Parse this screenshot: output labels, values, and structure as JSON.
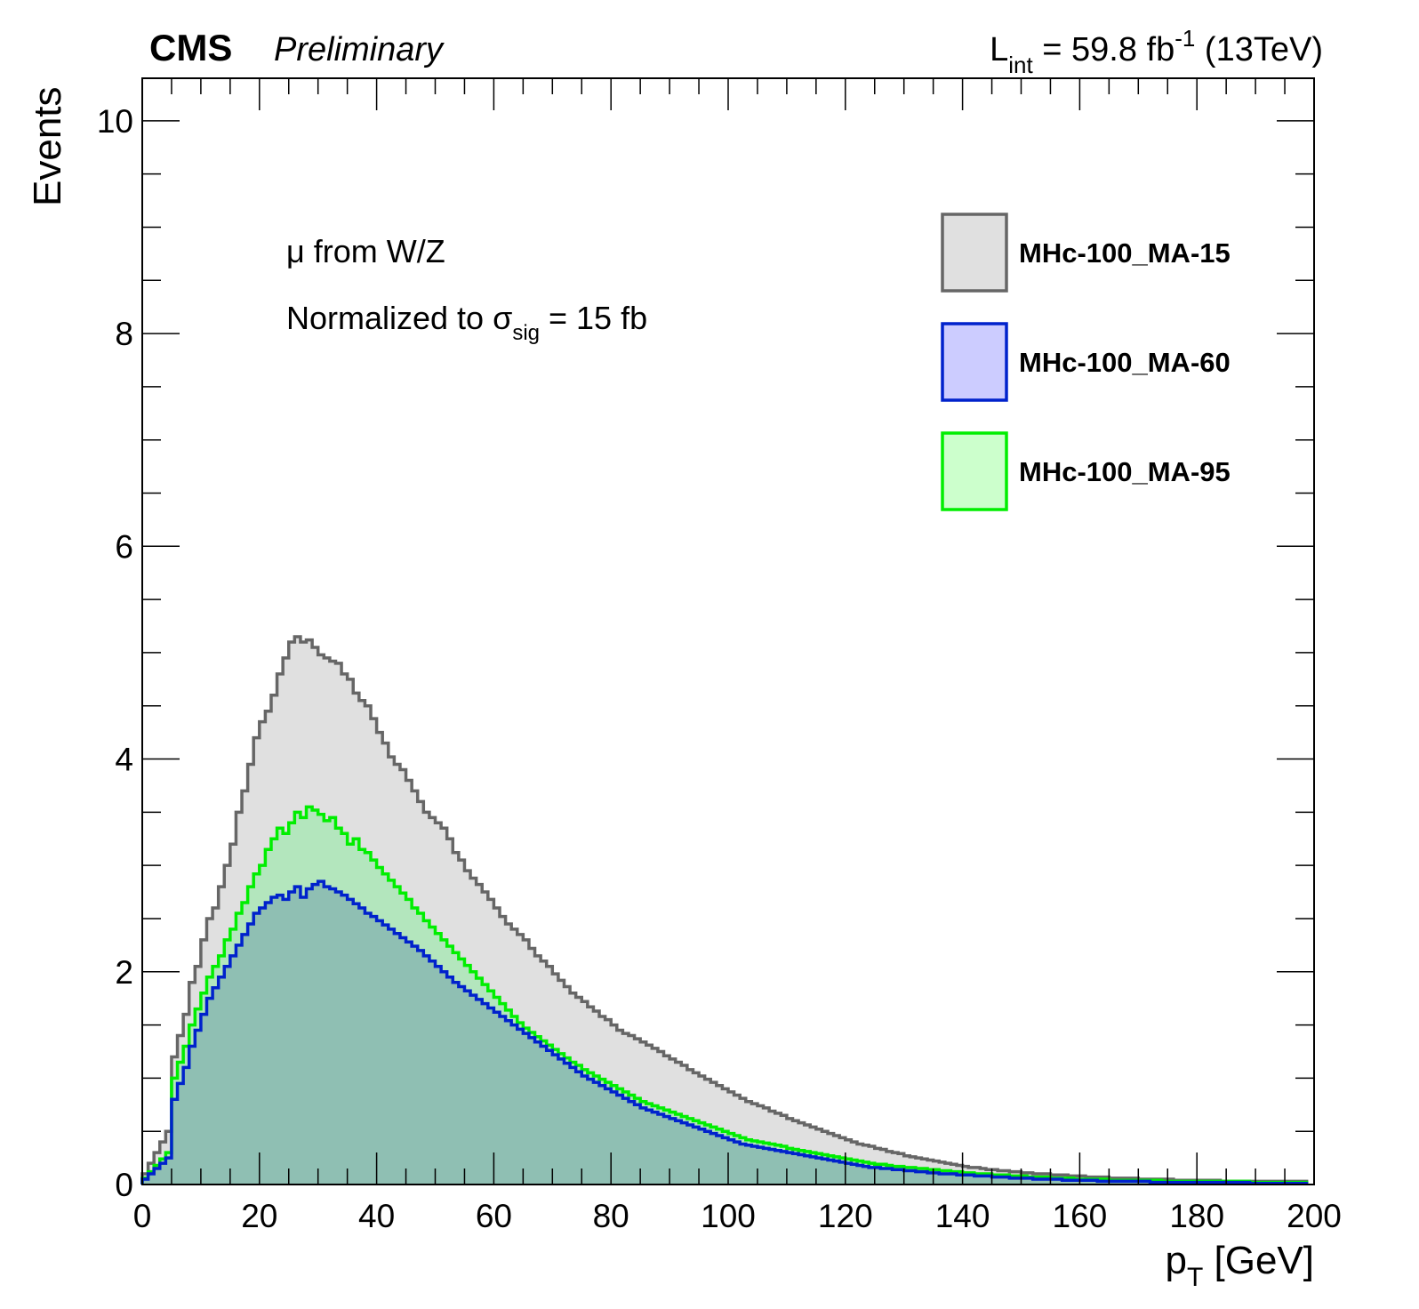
{
  "header": {
    "experiment": "CMS",
    "status": "Preliminary",
    "lumi_prefix": "L",
    "lumi_sub": "int",
    "lumi_value": " = 59.8 fb",
    "lumi_sup": "-1",
    "lumi_energy": " (13TeV)"
  },
  "annotations": {
    "line1": "μ from W/Z",
    "line2_prefix": "Normalized to σ",
    "line2_sub": "sig",
    "line2_suffix": " = 15 fb"
  },
  "axes": {
    "xlabel_main": "p",
    "xlabel_sub": "T",
    "xlabel_unit": " [GeV]",
    "ylabel": "Events"
  },
  "colors": {
    "ma15_line": "#666666",
    "ma15_fill": "#e0e0e0",
    "ma60_line": "#0022cc",
    "ma60_fill": "#ccccff",
    "ma95_line": "#00ee00",
    "ma95_fill": "#ccffcc",
    "overlap_fill": "#8fbfb3",
    "green_band_fill": "#b3e6bd"
  },
  "chart_data": {
    "type": "histogram",
    "xlim": [
      0,
      200
    ],
    "ylim": [
      0,
      10.4
    ],
    "x_ticks": [
      0,
      20,
      40,
      60,
      80,
      100,
      120,
      140,
      160,
      180,
      200
    ],
    "y_ticks": [
      0,
      2,
      4,
      6,
      8,
      10
    ],
    "grid": false,
    "legend_position": "top-right",
    "bin_width": 1,
    "series": [
      {
        "name": "MHc-100_MA-15",
        "color_key": "ma15",
        "values": [
          0.1,
          0.2,
          0.3,
          0.4,
          0.5,
          1.2,
          1.4,
          1.6,
          1.9,
          2.05,
          2.3,
          2.5,
          2.6,
          2.8,
          3.0,
          3.2,
          3.5,
          3.7,
          3.95,
          4.2,
          4.35,
          4.45,
          4.6,
          4.8,
          4.95,
          5.1,
          5.15,
          5.1,
          5.12,
          5.05,
          4.98,
          4.95,
          4.92,
          4.9,
          4.8,
          4.75,
          4.62,
          4.55,
          4.5,
          4.38,
          4.25,
          4.15,
          4.02,
          3.95,
          3.9,
          3.8,
          3.7,
          3.6,
          3.5,
          3.45,
          3.4,
          3.35,
          3.25,
          3.12,
          3.05,
          2.95,
          2.88,
          2.82,
          2.75,
          2.68,
          2.6,
          2.52,
          2.45,
          2.4,
          2.35,
          2.3,
          2.22,
          2.15,
          2.1,
          2.05,
          1.98,
          1.92,
          1.86,
          1.8,
          1.76,
          1.72,
          1.67,
          1.63,
          1.58,
          1.55,
          1.5,
          1.45,
          1.42,
          1.4,
          1.37,
          1.34,
          1.31,
          1.28,
          1.25,
          1.21,
          1.18,
          1.15,
          1.12,
          1.08,
          1.05,
          1.02,
          0.99,
          0.96,
          0.93,
          0.9,
          0.87,
          0.84,
          0.81,
          0.78,
          0.76,
          0.74,
          0.72,
          0.69,
          0.67,
          0.65,
          0.62,
          0.6,
          0.58,
          0.56,
          0.54,
          0.52,
          0.5,
          0.48,
          0.46,
          0.44,
          0.42,
          0.4,
          0.38,
          0.37,
          0.36,
          0.34,
          0.33,
          0.31,
          0.3,
          0.29,
          0.27,
          0.26,
          0.25,
          0.24,
          0.23,
          0.22,
          0.21,
          0.2,
          0.19,
          0.18,
          0.17,
          0.16,
          0.16,
          0.15,
          0.14,
          0.14,
          0.13,
          0.13,
          0.12,
          0.12,
          0.11,
          0.11,
          0.1,
          0.1,
          0.1,
          0.09,
          0.09,
          0.09,
          0.08,
          0.08,
          0.08,
          0.07,
          0.07,
          0.07,
          0.07,
          0.06,
          0.06,
          0.06,
          0.06,
          0.06,
          0.05,
          0.05,
          0.05,
          0.05,
          0.05,
          0.05,
          0.04,
          0.04,
          0.04,
          0.04,
          0.04,
          0.04,
          0.04,
          0.04,
          0.03,
          0.03,
          0.03,
          0.03,
          0.03,
          0.03,
          0.03,
          0.03,
          0.03,
          0.03,
          0.03,
          0.03,
          0.03,
          0.03,
          0.03
        ]
      },
      {
        "name": "MHc-100_MA-60",
        "color_key": "ma60",
        "values": [
          0.05,
          0.1,
          0.15,
          0.2,
          0.25,
          0.8,
          0.95,
          1.1,
          1.3,
          1.45,
          1.6,
          1.75,
          1.85,
          1.95,
          2.05,
          2.15,
          2.25,
          2.35,
          2.45,
          2.55,
          2.6,
          2.65,
          2.7,
          2.72,
          2.68,
          2.75,
          2.8,
          2.7,
          2.78,
          2.82,
          2.85,
          2.8,
          2.78,
          2.75,
          2.72,
          2.68,
          2.64,
          2.6,
          2.55,
          2.52,
          2.48,
          2.44,
          2.4,
          2.36,
          2.32,
          2.28,
          2.24,
          2.2,
          2.15,
          2.1,
          2.05,
          2.0,
          1.95,
          1.9,
          1.86,
          1.82,
          1.78,
          1.74,
          1.7,
          1.66,
          1.62,
          1.58,
          1.54,
          1.5,
          1.46,
          1.42,
          1.38,
          1.34,
          1.3,
          1.26,
          1.22,
          1.18,
          1.14,
          1.1,
          1.06,
          1.02,
          0.99,
          0.96,
          0.93,
          0.9,
          0.87,
          0.84,
          0.81,
          0.78,
          0.75,
          0.72,
          0.7,
          0.68,
          0.66,
          0.64,
          0.62,
          0.6,
          0.58,
          0.56,
          0.54,
          0.52,
          0.5,
          0.48,
          0.46,
          0.44,
          0.42,
          0.4,
          0.38,
          0.37,
          0.36,
          0.35,
          0.34,
          0.33,
          0.32,
          0.31,
          0.3,
          0.29,
          0.28,
          0.27,
          0.26,
          0.25,
          0.24,
          0.23,
          0.22,
          0.21,
          0.2,
          0.19,
          0.18,
          0.17,
          0.16,
          0.16,
          0.15,
          0.15,
          0.14,
          0.14,
          0.13,
          0.13,
          0.12,
          0.12,
          0.11,
          0.11,
          0.1,
          0.1,
          0.1,
          0.09,
          0.09,
          0.09,
          0.08,
          0.08,
          0.08,
          0.07,
          0.07,
          0.07,
          0.06,
          0.06,
          0.06,
          0.06,
          0.05,
          0.05,
          0.05,
          0.05,
          0.05,
          0.04,
          0.04,
          0.04,
          0.04,
          0.04,
          0.04,
          0.03,
          0.03,
          0.03,
          0.03,
          0.03,
          0.03,
          0.03,
          0.03,
          0.03,
          0.02,
          0.02,
          0.02,
          0.02,
          0.02,
          0.02,
          0.02,
          0.02,
          0.02,
          0.02,
          0.02,
          0.02,
          0.02,
          0.02,
          0.02,
          0.02,
          0.02,
          0.01,
          0.01,
          0.01,
          0.01,
          0.01,
          0.01,
          0.01,
          0.01,
          0.01,
          0.01,
          0.01
        ]
      },
      {
        "name": "MHc-100_MA-95",
        "color_key": "ma95",
        "values": [
          0.06,
          0.12,
          0.18,
          0.24,
          0.3,
          1.0,
          1.15,
          1.3,
          1.5,
          1.65,
          1.8,
          1.95,
          2.05,
          2.15,
          2.3,
          2.4,
          2.55,
          2.65,
          2.8,
          2.92,
          3.0,
          3.15,
          3.25,
          3.35,
          3.3,
          3.4,
          3.5,
          3.45,
          3.55,
          3.52,
          3.48,
          3.42,
          3.45,
          3.35,
          3.3,
          3.2,
          3.25,
          3.15,
          3.12,
          3.05,
          2.98,
          2.92,
          2.86,
          2.8,
          2.74,
          2.68,
          2.6,
          2.55,
          2.48,
          2.42,
          2.36,
          2.3,
          2.24,
          2.18,
          2.12,
          2.06,
          2.0,
          1.94,
          1.88,
          1.82,
          1.76,
          1.7,
          1.64,
          1.58,
          1.52,
          1.47,
          1.43,
          1.39,
          1.35,
          1.31,
          1.27,
          1.23,
          1.19,
          1.15,
          1.12,
          1.08,
          1.05,
          1.02,
          0.99,
          0.96,
          0.93,
          0.9,
          0.87,
          0.84,
          0.81,
          0.78,
          0.76,
          0.74,
          0.72,
          0.7,
          0.68,
          0.66,
          0.64,
          0.62,
          0.6,
          0.58,
          0.56,
          0.54,
          0.52,
          0.5,
          0.48,
          0.46,
          0.44,
          0.42,
          0.41,
          0.4,
          0.39,
          0.38,
          0.37,
          0.36,
          0.34,
          0.33,
          0.32,
          0.31,
          0.3,
          0.29,
          0.28,
          0.27,
          0.26,
          0.25,
          0.24,
          0.23,
          0.22,
          0.21,
          0.2,
          0.19,
          0.19,
          0.18,
          0.17,
          0.17,
          0.16,
          0.16,
          0.15,
          0.15,
          0.14,
          0.14,
          0.13,
          0.13,
          0.12,
          0.12,
          0.11,
          0.11,
          0.1,
          0.1,
          0.1,
          0.09,
          0.09,
          0.09,
          0.08,
          0.08,
          0.08,
          0.07,
          0.07,
          0.07,
          0.07,
          0.06,
          0.06,
          0.06,
          0.06,
          0.05,
          0.05,
          0.05,
          0.05,
          0.05,
          0.05,
          0.04,
          0.04,
          0.04,
          0.04,
          0.04,
          0.04,
          0.04,
          0.04,
          0.04,
          0.03,
          0.03,
          0.03,
          0.03,
          0.03,
          0.03,
          0.03,
          0.03,
          0.03,
          0.03,
          0.03,
          0.03,
          0.03,
          0.03,
          0.03,
          0.02,
          0.02,
          0.02,
          0.02,
          0.02,
          0.02,
          0.02,
          0.02,
          0.02,
          0.02
        ]
      }
    ]
  }
}
